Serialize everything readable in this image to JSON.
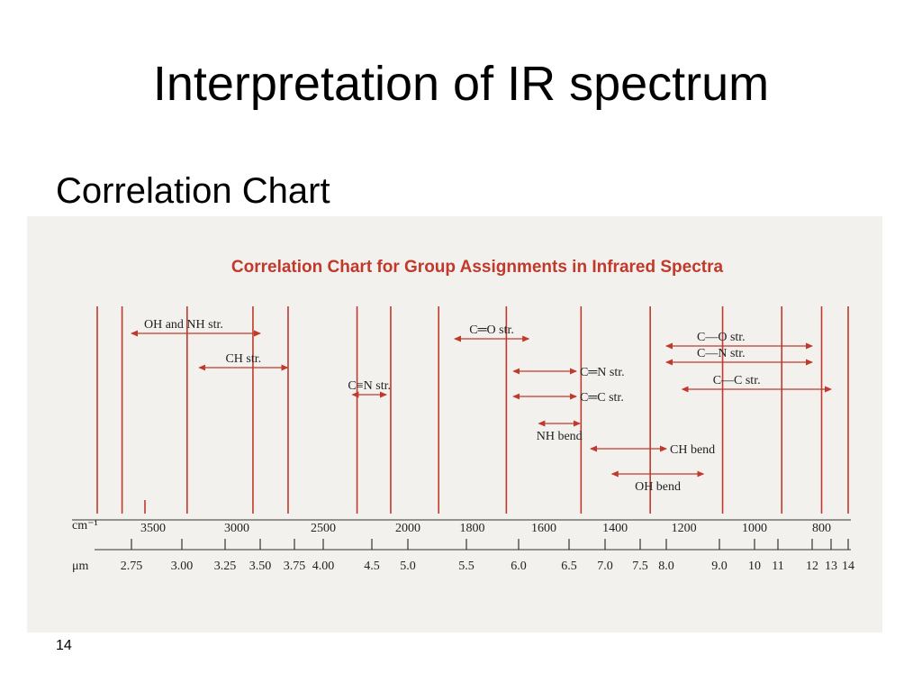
{
  "slide": {
    "title": "Interpretation of IR spectrum",
    "subtitle": "Correlation Chart",
    "page_number": "14"
  },
  "chart_data": {
    "type": "table",
    "title": "Correlation Chart for Group Assignments in Infrared Spectra",
    "colors": {
      "lines": "#c0392b",
      "title": "#c0392b",
      "text": "#222222",
      "background": "#f3f1ee"
    },
    "wavenumber_axis": {
      "label": "cm⁻¹",
      "ticks": [
        {
          "value": 3500,
          "label": "3500"
        },
        {
          "value": 3000,
          "label": "3000"
        },
        {
          "value": 2500,
          "label": "2500"
        },
        {
          "value": 2000,
          "label": "2000"
        },
        {
          "value": 1800,
          "label": "1800"
        },
        {
          "value": 1600,
          "label": "1600"
        },
        {
          "value": 1400,
          "label": "1400"
        },
        {
          "value": 1200,
          "label": "1200"
        },
        {
          "value": 1000,
          "label": "1000"
        },
        {
          "value": 800,
          "label": "800"
        }
      ]
    },
    "micron_axis": {
      "label": "μm",
      "ticks": [
        {
          "value": 2.75,
          "label": "2.75"
        },
        {
          "value": 3.0,
          "label": "3.00"
        },
        {
          "value": 3.25,
          "label": "3.25"
        },
        {
          "value": 3.5,
          "label": "3.50"
        },
        {
          "value": 3.75,
          "label": "3.75"
        },
        {
          "value": 4.0,
          "label": "4.00"
        },
        {
          "value": 4.5,
          "label": "4.5"
        },
        {
          "value": 5.0,
          "label": "5.0"
        },
        {
          "value": 5.5,
          "label": "5.5"
        },
        {
          "value": 6.0,
          "label": "6.0"
        },
        {
          "value": 6.5,
          "label": "6.5"
        },
        {
          "value": 7.0,
          "label": "7.0"
        },
        {
          "value": 7.5,
          "label": "7.5"
        },
        {
          "value": 8.0,
          "label": "8.0"
        },
        {
          "value": 9.0,
          "label": "9.0"
        },
        {
          "value": 10,
          "label": "10"
        },
        {
          "value": 11,
          "label": "11"
        },
        {
          "value": 12,
          "label": "12"
        },
        {
          "value": 13,
          "label": "13"
        },
        {
          "value": 14,
          "label": "14"
        }
      ]
    },
    "bands": [
      {
        "label": "OH and NH str.",
        "from_um": 2.75,
        "to_um": 3.5
      },
      {
        "label": "CH str.",
        "from_um": 3.1,
        "to_um": 3.7
      },
      {
        "label": "C≡N str.",
        "from_um": 4.3,
        "to_um": 4.7
      },
      {
        "label": "C═O str.",
        "from_um": 5.4,
        "to_um": 6.1
      },
      {
        "label": "C═N str.",
        "from_um": 5.95,
        "to_um": 6.6
      },
      {
        "label": "C═C str.",
        "from_um": 5.95,
        "to_um": 6.6
      },
      {
        "label": "NH bend",
        "from_um": 6.2,
        "to_um": 6.65
      },
      {
        "label": "CH bend",
        "from_um": 6.8,
        "to_um": 8.0
      },
      {
        "label": "OH bend",
        "from_um": 7.1,
        "to_um": 8.7
      },
      {
        "label": "C—O str.",
        "from_um": 8.0,
        "to_um": 12.0
      },
      {
        "label": "C—N str.",
        "from_um": 8.0,
        "to_um": 12.0
      },
      {
        "label": "C—C str.",
        "from_um": 8.3,
        "to_um": 13.0
      }
    ]
  }
}
